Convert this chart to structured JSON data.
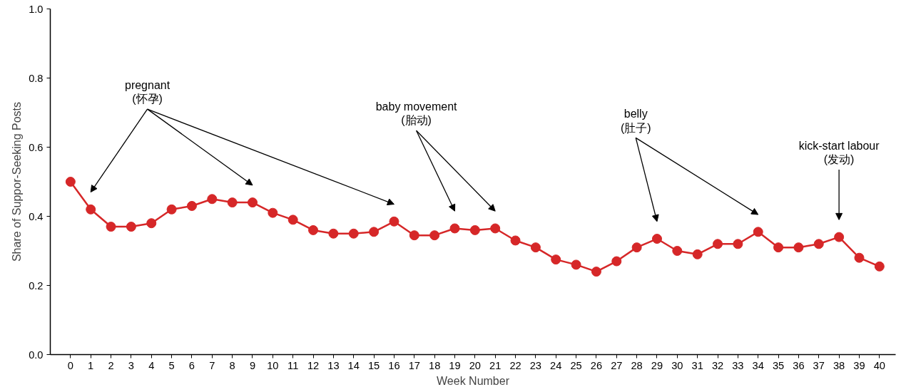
{
  "chart_data": {
    "type": "line",
    "xlabel": "Week Number",
    "ylabel": "Share of Suppor-Seeking Posts",
    "x": [
      0,
      1,
      2,
      3,
      4,
      5,
      6,
      7,
      8,
      9,
      10,
      11,
      12,
      13,
      14,
      15,
      16,
      17,
      18,
      19,
      20,
      21,
      22,
      23,
      24,
      25,
      26,
      27,
      28,
      29,
      30,
      31,
      32,
      33,
      34,
      35,
      36,
      37,
      38,
      39,
      40
    ],
    "series": [
      {
        "color": "#d62728",
        "values": [
          0.5,
          0.42,
          0.37,
          0.37,
          0.38,
          0.42,
          0.43,
          0.45,
          0.44,
          0.44,
          0.41,
          0.39,
          0.36,
          0.35,
          0.35,
          0.355,
          0.385,
          0.345,
          0.345,
          0.365,
          0.36,
          0.365,
          0.33,
          0.31,
          0.275,
          0.26,
          0.24,
          0.27,
          0.31,
          0.335,
          0.3,
          0.29,
          0.32,
          0.32,
          0.355,
          0.31,
          0.31,
          0.32,
          0.34,
          0.28,
          0.255
        ]
      }
    ],
    "xlim": [
      -1,
      40.8
    ],
    "ylim": [
      0,
      1.0
    ],
    "xticks": [
      0,
      1,
      2,
      3,
      4,
      5,
      6,
      7,
      8,
      9,
      10,
      11,
      12,
      13,
      14,
      15,
      16,
      17,
      18,
      19,
      20,
      21,
      22,
      23,
      24,
      25,
      26,
      27,
      28,
      29,
      30,
      31,
      32,
      33,
      34,
      35,
      36,
      37,
      38,
      39,
      40
    ],
    "yticks": [
      {
        "value": 0,
        "label": "0.0"
      },
      {
        "value": 0.2,
        "label": "0.2"
      },
      {
        "value": 0.4,
        "label": "0.4"
      },
      {
        "value": 0.6,
        "label": "0.6"
      },
      {
        "value": 0.8,
        "label": "0.8"
      },
      {
        "value": 1.0,
        "label": "1.0"
      }
    ],
    "grid": false,
    "marker": "circle",
    "line_style": "solid",
    "annotations": [
      "pregnant\n(怀孕)",
      "baby movement\n(胎动)",
      "belly\n(肚子)",
      "kick-start labour\n(发动)"
    ]
  }
}
